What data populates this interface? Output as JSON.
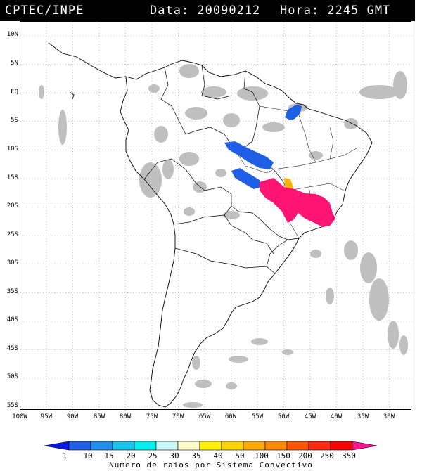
{
  "header": {
    "source": "CPTEC/INPE",
    "date_text": "Data: 20090212",
    "time_text": "Hora: 2245 GMT"
  },
  "axes": {
    "lat_labels": [
      "10N",
      "5N",
      "EQ",
      "5S",
      "10S",
      "15S",
      "20S",
      "25S",
      "30S",
      "35S",
      "40S",
      "45S",
      "50S",
      "55S"
    ],
    "lon_labels": [
      "100W",
      "95W",
      "90W",
      "85W",
      "80W",
      "75W",
      "70W",
      "65W",
      "60W",
      "55W",
      "50W",
      "45W",
      "40W",
      "35W",
      "30W"
    ]
  },
  "colorbar": {
    "caption": "Numero de raios por Sistema Convectivo",
    "labels": [
      "1",
      "10",
      "15",
      "20",
      "25",
      "30",
      "35",
      "40",
      "50",
      "100",
      "150",
      "200",
      "250",
      "350"
    ],
    "colors": [
      "#0a17e6",
      "#1e5fe6",
      "#1f8fea",
      "#19c3ee",
      "#00f0f0",
      "#c8f5f5",
      "#fffbc8",
      "#fff000",
      "#ffd200",
      "#ffaa00",
      "#ff8a00",
      "#ff5500",
      "#ff2a10",
      "#ff0000",
      "#ff1493"
    ]
  },
  "map_colors": {
    "satellite_gray": "#b4b4b4",
    "cell_blue": "#1e5fe6",
    "cell_pink": "#ff1473",
    "cell_orange": "#ffb400"
  }
}
